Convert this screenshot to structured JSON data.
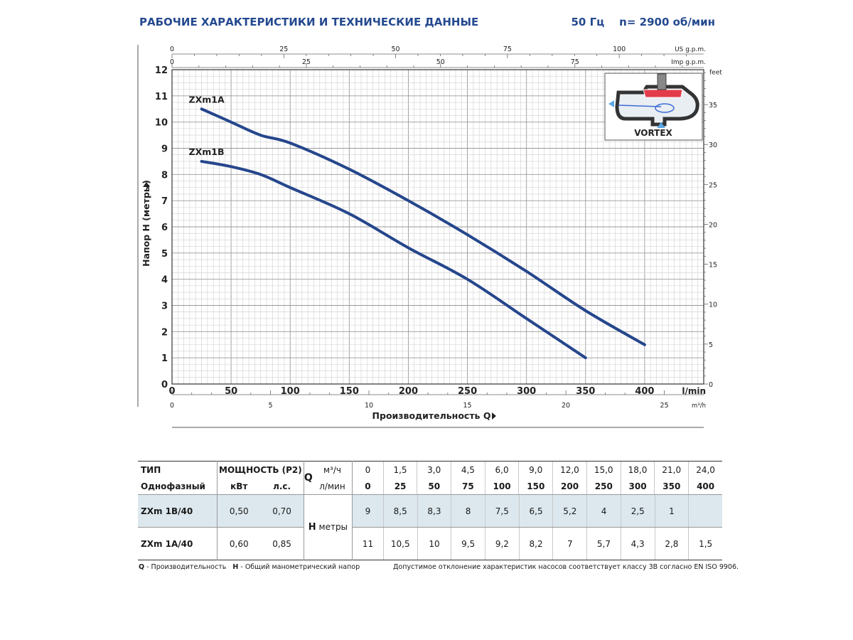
{
  "header": {
    "title": "РАБОЧИЕ ХАРАКТЕРИСТИКИ И ТЕХНИЧЕСКИЕ ДАННЫЕ",
    "freq": "50 Гц    n= 2900 об/мин"
  },
  "chart_data": {
    "type": "line",
    "xlabel": "Производительность Q",
    "ylabel": "Напор H (метры)",
    "x_unit": "l/min",
    "xlim": [
      0,
      450
    ],
    "ylim": [
      0,
      12
    ],
    "x_ticks": [
      0,
      50,
      100,
      150,
      200,
      250,
      300,
      350,
      400
    ],
    "y_ticks": [
      0,
      1,
      2,
      3,
      4,
      5,
      6,
      7,
      8,
      9,
      10,
      11,
      12
    ],
    "series": [
      {
        "name": "ZXm1A",
        "color": "#25468c",
        "x": [
          25,
          50,
          75,
          100,
          150,
          200,
          250,
          300,
          350,
          400
        ],
        "y": [
          10.5,
          10,
          9.5,
          9.2,
          8.2,
          7,
          5.7,
          4.3,
          2.8,
          1.5
        ]
      },
      {
        "name": "ZXm1B",
        "color": "#25468c",
        "x": [
          25,
          50,
          75,
          100,
          150,
          200,
          250,
          300,
          350
        ],
        "y": [
          8.5,
          8.3,
          8,
          7.5,
          6.5,
          5.2,
          4,
          2.5,
          1
        ]
      }
    ],
    "secondary_axes": {
      "us_gpm": {
        "label": "US g.p.m.",
        "ticks": [
          "0",
          "25",
          "50",
          "75",
          "100"
        ],
        "values": [
          0,
          25,
          50,
          75,
          100
        ]
      },
      "imp_gpm": {
        "label": "Imp g.p.m.",
        "ticks": [
          "0",
          "25",
          "50",
          "75"
        ],
        "values": [
          0,
          25,
          50,
          75
        ]
      },
      "feet": {
        "label": "feet",
        "ticks": [
          "0",
          "5",
          "10",
          "15",
          "20",
          "25",
          "30",
          "35"
        ],
        "values": [
          0,
          5,
          10,
          15,
          20,
          25,
          30,
          35
        ]
      },
      "m3h": {
        "label": "m³/h",
        "ticks": [
          "0",
          "5",
          "10",
          "15",
          "20",
          "25"
        ],
        "values": [
          0,
          5,
          10,
          15,
          20,
          25
        ]
      }
    },
    "inset_label": "VORTEX",
    "grid": true
  },
  "table": {
    "head1": {
      "type": "ТИП",
      "power": "МОЩНОСТЬ (P2)",
      "q": "Q",
      "unit_m3": "м³/ч",
      "m3": [
        "0",
        "1,5",
        "3,0",
        "4,5",
        "6,0",
        "9,0",
        "12,0",
        "15,0",
        "18,0",
        "21,0",
        "24,0"
      ]
    },
    "head2": {
      "type": "Однофазный",
      "kw": "кВт",
      "hp": "л.с.",
      "unit_l": "л/мин",
      "lmin": [
        "0",
        "25",
        "50",
        "75",
        "100",
        "150",
        "200",
        "250",
        "300",
        "350",
        "400"
      ]
    },
    "h_label": "H",
    "h_unit": "метры",
    "rows": [
      {
        "model": "ZXm 1B/40",
        "kw": "0,50",
        "hp": "0,70",
        "h": [
          "9",
          "8,5",
          "8,3",
          "8",
          "7,5",
          "6,5",
          "5,2",
          "4",
          "2,5",
          "1",
          ""
        ]
      },
      {
        "model": "ZXm 1A/40",
        "kw": "0,60",
        "hp": "0,85",
        "h": [
          "11",
          "10,5",
          "10",
          "9,5",
          "9,2",
          "8,2",
          "7",
          "5,7",
          "4,3",
          "2,8",
          "1,5"
        ]
      }
    ]
  },
  "footer": {
    "q_key": "Q",
    "q_text": " - Производительность",
    "h_key": "H",
    "h_text": " - Общий манометрический напор",
    "note": "Допустимое отклонение характеристик насосов соответствует классу 3B согласно EN ISO 9906."
  }
}
